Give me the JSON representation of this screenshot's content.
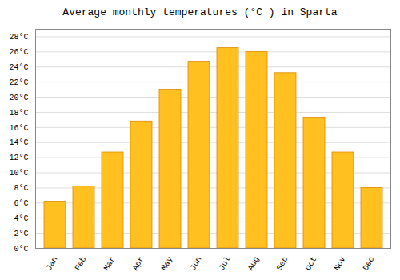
{
  "chart_data": {
    "type": "bar",
    "title": "Average monthly temperatures (°C ) in Sparta",
    "categories": [
      "Jan",
      "Feb",
      "Mar",
      "Apr",
      "May",
      "Jun",
      "Jul",
      "Aug",
      "Sep",
      "Oct",
      "Nov",
      "Dec"
    ],
    "values": [
      6.2,
      8.2,
      12.7,
      16.8,
      21.0,
      24.7,
      26.5,
      26.0,
      23.2,
      17.3,
      12.7,
      8.0
    ],
    "color": "#FFC020",
    "ylim": [
      0,
      29
    ],
    "yticks": [
      {
        "value": 0,
        "label": "0°C"
      },
      {
        "value": 2,
        "label": "2°C"
      },
      {
        "value": 4,
        "label": "4°C"
      },
      {
        "value": 6,
        "label": "6°C"
      },
      {
        "value": 8,
        "label": "8°C"
      },
      {
        "value": 10,
        "label": "10°C"
      },
      {
        "value": 12,
        "label": "12°C"
      },
      {
        "value": 14,
        "label": "14°C"
      },
      {
        "value": 16,
        "label": "16°C"
      },
      {
        "value": 18,
        "label": "18°C"
      },
      {
        "value": 20,
        "label": "20°C"
      },
      {
        "value": 22,
        "label": "22°C"
      },
      {
        "value": 24,
        "label": "24°C"
      },
      {
        "value": 26,
        "label": "26°C"
      },
      {
        "value": 28,
        "label": "28°C"
      }
    ],
    "grid": true
  }
}
